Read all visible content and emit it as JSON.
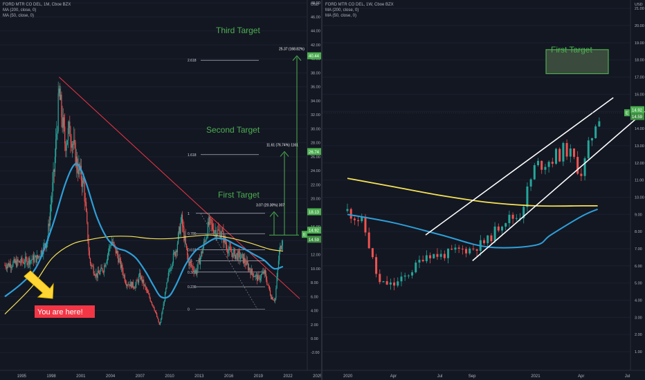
{
  "left_chart": {
    "legend": [
      "FORD MTR CO DEL, 1M, Cboe BZX",
      "MA (200, close, 0)",
      "MA (50, close, 0)"
    ],
    "currency": "USD",
    "y_ticks": [
      "48.00",
      "46.00",
      "44.00",
      "42.00",
      "40.00",
      "38.00",
      "36.00",
      "34.00",
      "32.00",
      "30.00",
      "28.00",
      "26.00",
      "24.00",
      "22.00",
      "20.00",
      "18.00",
      "16.00",
      "14.00",
      "12.00",
      "10.00",
      "8.00",
      "6.00",
      "4.00",
      "2.00",
      "0.00",
      "-2.00"
    ],
    "x_ticks": [
      "1995",
      "1998",
      "2001",
      "2004",
      "2007",
      "2010",
      "2013",
      "2016",
      "2019",
      "2022",
      "2025"
    ],
    "targets": [
      "Third Target",
      "Second Target",
      "First Target"
    ],
    "callout": "You are here!",
    "fib_levels": [
      "2.618",
      "1.618",
      "1",
      "0.786",
      "0.618",
      "0.5",
      "0.382",
      "0.236",
      "0"
    ],
    "measure_labels": [
      "25.37 (168.82%)",
      "11.61 (76.74%) 1161",
      "3.07 (20.30%) 307"
    ],
    "price_tags": [
      "40.44",
      "26.74",
      "18.13"
    ],
    "price_tag_current": "14.92",
    "price_tag_current_sub": "14.59",
    "price_tag_letter": "E"
  },
  "right_chart": {
    "legend": [
      "FORD MTR CO DEL, 1W, Cboe BZX",
      "MA (200, close, 0)",
      "MA (50, close, 0)"
    ],
    "currency": "USD",
    "y_ticks": [
      "21.00",
      "20.00",
      "19.00",
      "18.00",
      "17.00",
      "16.00",
      "15.00",
      "14.00",
      "13.00",
      "12.00",
      "11.00",
      "10.00",
      "9.00",
      "8.00",
      "7.00",
      "6.00",
      "5.00",
      "4.00",
      "3.00",
      "2.00",
      "1.00"
    ],
    "x_ticks": [
      "2020",
      "Apr",
      "Jul",
      "Sep",
      "2021",
      "Apr",
      "Jul",
      "Sep"
    ],
    "target": "First Target",
    "price_tag_current": "14.92",
    "price_tag_current_sub": "14.59",
    "price_tag_letter": "E"
  },
  "chart_data": [
    {
      "type": "line",
      "title": "FORD MTR CO DEL, 1M, Cboe BZX",
      "ylim": [
        -2,
        48
      ],
      "series": [
        {
          "name": "FORD MTR CO DEL, 1M, Cboe BZX",
          "x": [
            1993.2,
            1995,
            1996.5,
            1997.5,
            1998.2,
            1998.7,
            1999.3,
            1999.8,
            2000.5,
            2001.2,
            2001.8,
            2002.5,
            2003.2,
            2004,
            2004.6,
            2005.5,
            2006.4,
            2006.9,
            2007.5,
            2008.3,
            2008.9,
            2009.3,
            2009.9,
            2010.6,
            2011.1,
            2011.8,
            2012.6,
            2013.3,
            2013.9,
            2014.5,
            2015.2,
            2015.9,
            2016.6,
            2017.3,
            2018.2,
            2018.9,
            2019.5,
            2020.2,
            2020.6,
            2021.0,
            2021.4
          ],
          "values": [
            10.5,
            11,
            11.5,
            14,
            24,
            35,
            28,
            30,
            25,
            22,
            11,
            9,
            10,
            14,
            12,
            8,
            7.5,
            9,
            7,
            4.5,
            1.8,
            5,
            10,
            13,
            17,
            11,
            9.5,
            13,
            16.5,
            15.5,
            15,
            12.5,
            12,
            11.5,
            9.5,
            8.5,
            9.5,
            6,
            5.5,
            12,
            14.9
          ]
        },
        {
          "name": "MA (200, close, 0)",
          "x": [
            1993.2,
            1996,
            1998,
            2000,
            2002,
            2004,
            2006,
            2008,
            2010,
            2012,
            2014,
            2016,
            2018,
            2020,
            2021.4
          ],
          "values": [
            3.5,
            7.5,
            11.5,
            13.5,
            14.2,
            14.6,
            14.6,
            14.3,
            14.3,
            14.6,
            14.8,
            14.4,
            13.7,
            12.8,
            12.5
          ]
        },
        {
          "name": "MA (50, close, 0)",
          "x": [
            1993.2,
            1995,
            1996.5,
            1998,
            1999.3,
            2000.2,
            2000.8,
            2001.5,
            2002.5,
            2003.5,
            2004.5,
            2005.5,
            2006.5,
            2007.5,
            2008.3,
            2009,
            2009.8,
            2010.5,
            2011.5,
            2012.5,
            2013.5,
            2014.5,
            2015.5,
            2016.5,
            2017.5,
            2018.5,
            2019.5,
            2020.5,
            2021.4
          ],
          "values": [
            6,
            8,
            10.5,
            16,
            22,
            24.8,
            24.5,
            22,
            17.5,
            14.5,
            13,
            12.5,
            11.5,
            9.5,
            7.5,
            6,
            6,
            7.5,
            10.5,
            12.5,
            13.5,
            14.3,
            14.2,
            13.5,
            12.8,
            12,
            11.2,
            10,
            10.3
          ]
        }
      ],
      "annotations": {
        "fibonacci": [
          {
            "level": "0",
            "price": 4.2
          },
          {
            "level": "0.236",
            "price": 7.4
          },
          {
            "level": "0.382",
            "price": 9.5
          },
          {
            "level": "0.5",
            "price": 11.1
          },
          {
            "level": "0.618",
            "price": 12.7
          },
          {
            "level": "0.786",
            "price": 15.0
          },
          {
            "level": "1",
            "price": 17.9
          },
          {
            "level": "1.618",
            "price": 26.3
          },
          {
            "level": "2.618",
            "price": 39.8
          }
        ],
        "targets": [
          {
            "label": "First Target",
            "price": 18.13
          },
          {
            "label": "Second Target",
            "price": 26.74
          },
          {
            "label": "Third Target",
            "price": 40.44
          }
        ],
        "trendline": {
          "from": [
            1998.7,
            37.4
          ],
          "to": [
            2023.1,
            5.7
          ]
        }
      }
    },
    {
      "type": "line",
      "title": "FORD MTR CO DEL, 1W, Cboe BZX",
      "ylim": [
        1,
        21
      ],
      "series": [
        {
          "name": "FORD MTR CO DEL, 1W, Cboe BZX",
          "x": [
            "2020-01",
            "2020-02",
            "2020-03",
            "2020-04",
            "2020-05",
            "2020-06",
            "2020-07",
            "2020-08",
            "2020-09",
            "2020-10",
            "2020-11",
            "2020-12",
            "2021-01",
            "2021-02",
            "2021-03",
            "2021-04",
            "2021-05"
          ],
          "values": [
            9.2,
            8.5,
            5.0,
            4.9,
            5.6,
            6.7,
            6.6,
            6.9,
            7.0,
            7.5,
            8.7,
            8.9,
            11.8,
            12.2,
            12.8,
            11.4,
            14.9
          ]
        },
        {
          "name": "MA (200, close, 0)",
          "x": [
            "2020-01",
            "2020-04",
            "2020-07",
            "2020-10",
            "2021-01",
            "2021-04",
            "2021-05"
          ],
          "values": [
            11.1,
            10.6,
            10.1,
            9.7,
            9.5,
            9.5,
            9.5
          ]
        },
        {
          "name": "MA (50, close, 0)",
          "x": [
            "2020-01",
            "2020-04",
            "2020-07",
            "2020-10",
            "2021-01",
            "2021-02",
            "2021-04",
            "2021-05"
          ],
          "values": [
            9.0,
            8.5,
            7.8,
            7.1,
            7.2,
            7.8,
            8.9,
            9.3
          ]
        }
      ],
      "annotations": {
        "target": {
          "label": "First Target",
          "range": [
            17.2,
            18.6
          ]
        },
        "channel": [
          {
            "from": [
              "2020-06",
              7.8
            ],
            "to": [
              "2021-06",
              15.8
            ]
          },
          {
            "from": [
              "2020-09",
              6.3
            ],
            "to": [
              "2021-08",
              15.0
            ]
          }
        ]
      }
    }
  ]
}
